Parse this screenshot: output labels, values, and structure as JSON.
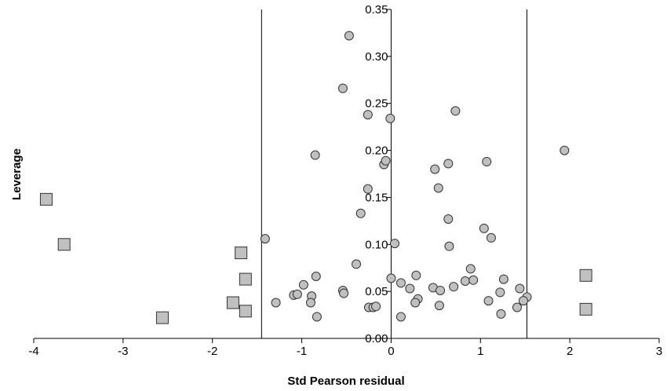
{
  "chart_data": {
    "type": "scatter",
    "x_label": "Std Pearson residual",
    "y_label": "Leverage",
    "xlim": [
      -4,
      3
    ],
    "xticks": [
      -4,
      -3,
      -2,
      -1,
      0,
      1,
      2,
      3
    ],
    "ylim": [
      0,
      0.35
    ],
    "yticks": [
      {
        "value": 0,
        "label": "0.00"
      },
      0.05,
      {
        "value": 0.1,
        "label": "0.10"
      },
      0.15,
      {
        "value": 0.2,
        "label": "0.20"
      },
      0.25,
      {
        "value": 0.3,
        "label": "0.30"
      },
      0.35
    ],
    "reference_lines_x": [
      -1.45,
      1.52
    ],
    "series": [
      {
        "marker": "circle",
        "color": "#c0c0c0",
        "x": [
          -0.47,
          -0.54,
          -0.26,
          -0.01,
          0.72,
          1.94,
          -0.85,
          1.07,
          0.64,
          -0.08,
          -0.06,
          0.49,
          0.53,
          -0.26,
          -0.34,
          0.64,
          1.04,
          1.12,
          -1.41,
          0.04,
          0.65,
          -0.39,
          0.89,
          -0.84,
          0.28,
          0.0,
          1.26,
          0.11,
          0.83,
          0.92,
          -0.98,
          0.21,
          0.47,
          0.7,
          1.44,
          0.55,
          -0.54,
          -0.53,
          -0.89,
          1.22,
          -1.09,
          -1.05,
          1.52,
          1.48,
          0.3,
          0.27,
          1.09,
          -0.9,
          -1.29,
          0.54,
          1.41,
          -0.25,
          -0.2,
          -0.17,
          1.23,
          0.11,
          -0.83
        ],
        "values": [
          0.322,
          0.266,
          0.238,
          0.234,
          0.242,
          0.2,
          0.195,
          0.188,
          0.186,
          0.185,
          0.189,
          0.18,
          0.16,
          0.159,
          0.133,
          0.127,
          0.117,
          0.107,
          0.106,
          0.101,
          0.098,
          0.079,
          0.074,
          0.066,
          0.067,
          0.064,
          0.063,
          0.059,
          0.061,
          0.062,
          0.057,
          0.053,
          0.054,
          0.055,
          0.053,
          0.051,
          0.051,
          0.048,
          0.045,
          0.049,
          0.046,
          0.047,
          0.044,
          0.04,
          0.042,
          0.038,
          0.04,
          0.038,
          0.038,
          0.035,
          0.033,
          0.033,
          0.033,
          0.034,
          0.026,
          0.023,
          0.023
        ]
      },
      {
        "marker": "square",
        "color": "#c0c0c0",
        "x": [
          -3.86,
          -3.66,
          -2.56,
          -1.68,
          -1.63,
          -1.77,
          -1.63,
          2.18,
          2.18
        ],
        "values": [
          0.148,
          0.1,
          0.022,
          0.091,
          0.063,
          0.038,
          0.029,
          0.067,
          0.031
        ]
      }
    ]
  }
}
